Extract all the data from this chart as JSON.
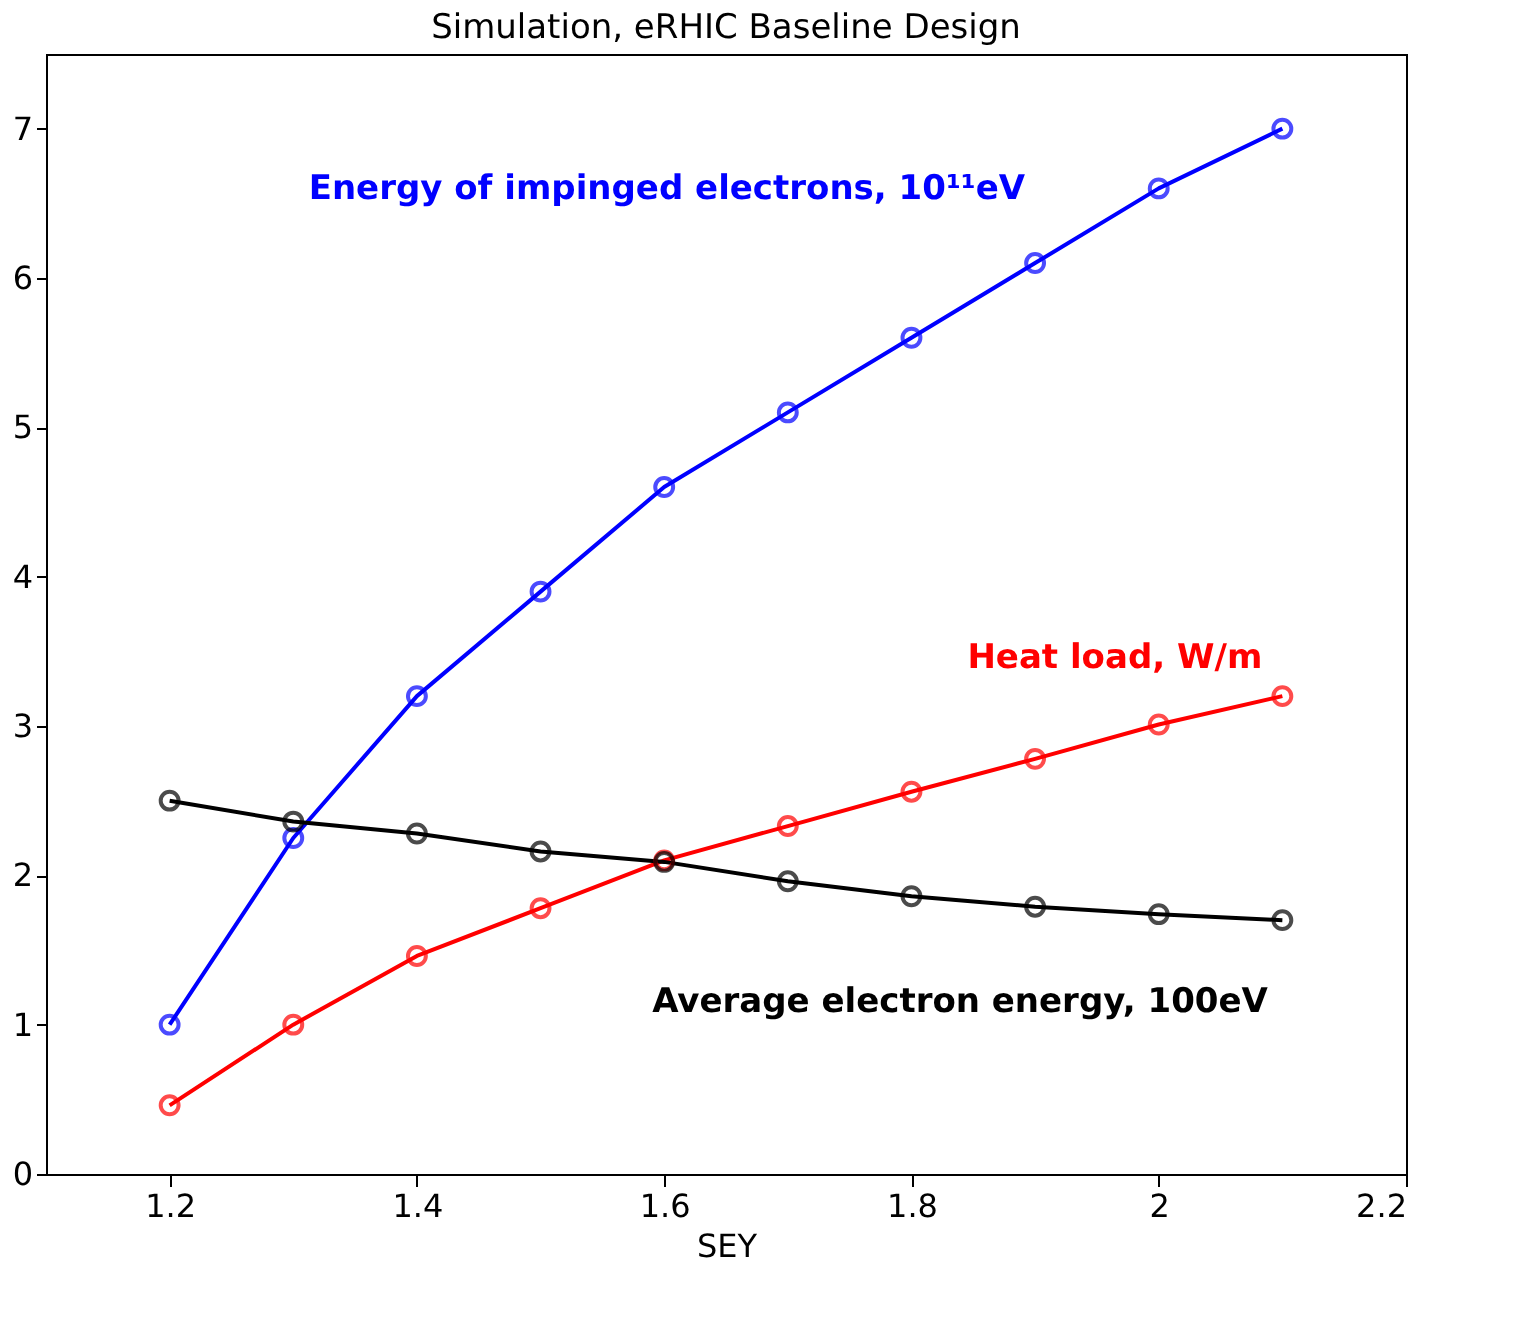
{
  "chart_data": {
    "type": "line",
    "title": "Simulation, eRHIC Baseline Design",
    "xlabel": "SEY",
    "x": [
      1.2,
      1.3,
      1.4,
      1.5,
      1.6,
      1.7,
      1.8,
      1.9,
      2.0,
      2.1
    ],
    "series": [
      {
        "name": "Energy of impinged electrons, 10¹¹eV",
        "color": "#0000ff",
        "values": [
          1.0,
          2.25,
          3.2,
          3.9,
          4.6,
          5.1,
          5.6,
          6.1,
          6.6,
          7.0
        ]
      },
      {
        "name": "Heat load, W/m",
        "color": "#ff0000",
        "values": [
          0.46,
          1.0,
          1.46,
          1.78,
          2.1,
          2.33,
          2.56,
          2.78,
          3.01,
          3.2
        ]
      },
      {
        "name": "Average electron energy, 100eV",
        "color": "#000000",
        "values": [
          2.5,
          2.36,
          2.28,
          2.16,
          2.09,
          1.96,
          1.86,
          1.79,
          1.74,
          1.7
        ]
      }
    ],
    "xlim": [
      1.1,
      2.2
    ],
    "xticks": [
      1.2,
      1.4,
      1.6,
      1.8,
      2,
      2.2
    ],
    "ylim": [
      0,
      7.5
    ],
    "yticks": [
      0,
      1,
      2,
      3,
      4,
      5,
      6,
      7
    ],
    "grid": false,
    "legend": false,
    "marker": "circle",
    "line_style": "solid"
  }
}
